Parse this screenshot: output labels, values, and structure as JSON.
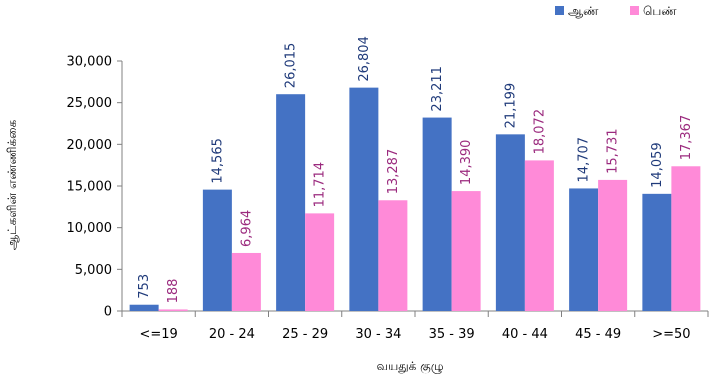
{
  "colors": {
    "male": "#4472C4",
    "female": "#FF8AD8",
    "male_label": "#1F3A7A",
    "female_label": "#9B2A7E"
  },
  "chart_data": {
    "type": "bar",
    "categories": [
      "<=19",
      "20 - 24",
      "25 - 29",
      "30 - 34",
      "35 - 39",
      "40 - 44",
      "45 - 49",
      ">=50"
    ],
    "series": [
      {
        "name": "ஆண்",
        "values": [
          753,
          14565,
          26015,
          26804,
          23211,
          21199,
          14707,
          14059
        ],
        "labels": [
          "753",
          "14,565",
          "26,015",
          "26,804",
          "23,211",
          "21,199",
          "14,707",
          "14,059"
        ]
      },
      {
        "name": "பெண்",
        "values": [
          188,
          6964,
          11714,
          13287,
          14390,
          18072,
          15731,
          17367
        ],
        "labels": [
          "188",
          "6,964",
          "11,714",
          "13,287",
          "14,390",
          "18,072",
          "15,731",
          "17,367"
        ]
      }
    ],
    "xlabel": "வயதுக் குழு",
    "ylabel": "ஆட்களின் எண்ணிக்கை",
    "ylim": [
      0,
      30000
    ],
    "yticks": [
      0,
      5000,
      10000,
      15000,
      20000,
      25000,
      30000
    ],
    "ytick_labels": [
      "0",
      "5,000",
      "10,000",
      "15,000",
      "20,000",
      "25,000",
      "30,000"
    ],
    "legend_position": "top-right",
    "grid": false
  }
}
